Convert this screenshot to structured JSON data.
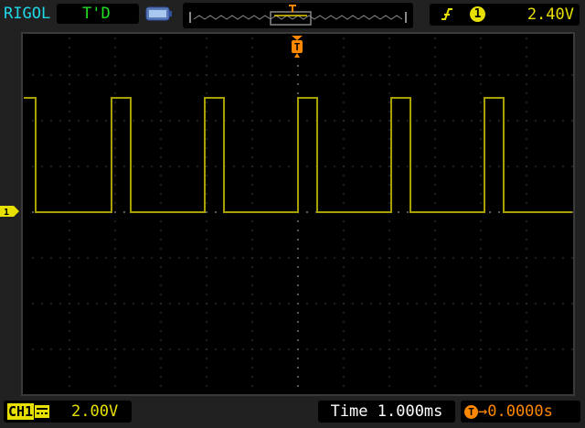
{
  "header": {
    "brand": "RIGOL",
    "run_status": "T'D",
    "trigger": {
      "slope_icon": "rising-edge-icon",
      "source": "1",
      "level": "2.40V"
    }
  },
  "footer": {
    "channel_label": "CH1",
    "coupling_icon": "dc-coupling-icon",
    "volts_per_div": "2.00V",
    "timebase": "Time 1.000ms",
    "trigger_marker": "T",
    "trigger_offset": "→0.0000s"
  },
  "markers": {
    "channel_marker": "1",
    "trigger_position": "T"
  },
  "colors": {
    "ch1": "#a8a000",
    "trigger": "#ff8800",
    "brand": "#20d8e8",
    "status": "#20e020",
    "grid": "#5a5a5a"
  },
  "chart_data": {
    "type": "line",
    "xlabel": "",
    "ylabel": "",
    "x_units": "ms",
    "y_units": "V",
    "xlim": [
      -6,
      6
    ],
    "ylim": [
      -8,
      8
    ],
    "grid": true,
    "series": [
      {
        "x": [
          -6,
          -5.74,
          -5.74,
          -4.08,
          -4.08,
          -3.66,
          -3.66,
          -2.04,
          -2.04,
          -1.62,
          -1.62,
          0,
          0,
          0.42,
          0.42,
          2.04,
          2.04,
          2.46,
          2.46,
          4.08,
          4.08,
          4.5,
          4.5,
          6
        ],
        "y": [
          5.0,
          5.0,
          0,
          0,
          5.0,
          5.0,
          0,
          0,
          5.0,
          5.0,
          0,
          0,
          5.0,
          5.0,
          0,
          0,
          5.0,
          5.0,
          0,
          0,
          5.0,
          5.0,
          0,
          0
        ]
      }
    ]
  }
}
